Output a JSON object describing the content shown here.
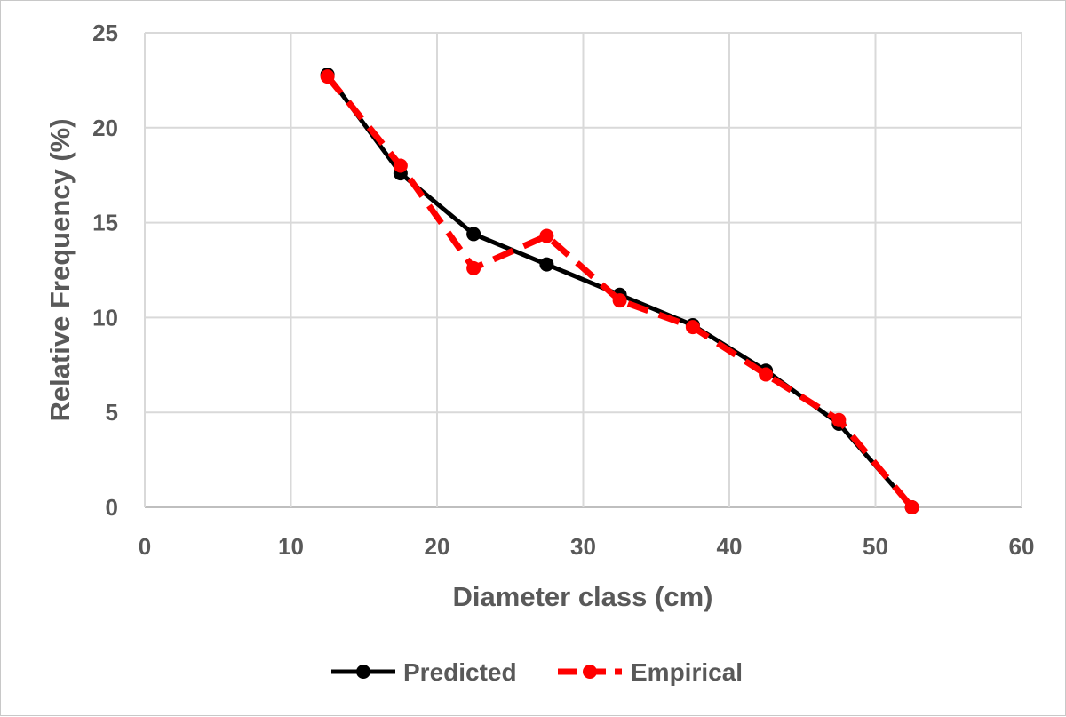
{
  "chart_data": {
    "type": "line",
    "xlabel": "Diameter class (cm)",
    "ylabel": "Relative Frequency (%)",
    "xlim": [
      0,
      60
    ],
    "ylim": [
      0,
      25
    ],
    "xticks": [
      0,
      10,
      20,
      30,
      40,
      50,
      60
    ],
    "yticks": [
      0,
      5,
      10,
      15,
      20,
      25
    ],
    "grid": true,
    "legend_position": "bottom",
    "series": [
      {
        "name": "Predicted",
        "color": "#000000",
        "style": "solid",
        "marker": "circle",
        "x": [
          12.5,
          17.5,
          22.5,
          27.5,
          32.5,
          37.5,
          42.5,
          47.5,
          52.5
        ],
        "y": [
          22.8,
          17.6,
          14.4,
          12.8,
          11.2,
          9.6,
          7.2,
          4.4,
          0.0
        ]
      },
      {
        "name": "Empirical",
        "color": "#ff0000",
        "style": "dashed",
        "marker": "circle",
        "x": [
          12.5,
          17.5,
          22.5,
          27.5,
          32.5,
          37.5,
          42.5,
          47.5,
          52.5
        ],
        "y": [
          22.7,
          18.0,
          12.6,
          14.3,
          10.9,
          9.5,
          7.0,
          4.6,
          0.0
        ]
      }
    ]
  }
}
